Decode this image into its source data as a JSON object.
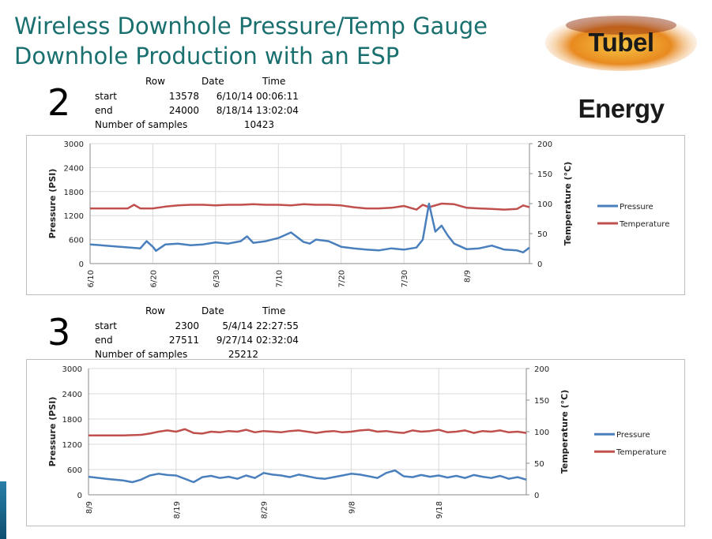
{
  "slide": {
    "title_line1": "Wireless Downhole Pressure/Temp Gauge",
    "title_line2": "Downhole Production with an ESP",
    "logo_text": "Tubel Energy",
    "colors": {
      "title": "#1a6f6f",
      "pressure": "#4a7fbd",
      "temperature": "#c0504d"
    }
  },
  "sections": [
    {
      "numeral": "2",
      "headers": {
        "row": "Row",
        "date": "Date",
        "time": "Time"
      },
      "start": {
        "label": "start",
        "row": "13578",
        "date": "6/10/14",
        "time": "00:06:11"
      },
      "end": {
        "label": "end",
        "row": "24000",
        "date": "8/18/14",
        "time": "13:02:04"
      },
      "samples": {
        "label": "Number of samples",
        "value": "10423"
      }
    },
    {
      "numeral": "3",
      "headers": {
        "row": "Row",
        "date": "Date",
        "time": "Time"
      },
      "start": {
        "label": "start",
        "row": "2300",
        "date": "5/4/14",
        "time": "22:27:55"
      },
      "end": {
        "label": "end",
        "row": "27511",
        "date": "9/27/14",
        "time": "02:32:04"
      },
      "samples": {
        "label": "Number of samples",
        "value": "25212"
      }
    }
  ],
  "chart_data": [
    {
      "type": "line",
      "ylabel": "Pressure (PSI)",
      "y2label": "Temperature (°C)",
      "ylim": [
        0,
        3000
      ],
      "y2lim": [
        0,
        200
      ],
      "yticks": [
        "3000",
        "2400",
        "1800",
        "1200",
        "600",
        "0"
      ],
      "y2ticks": [
        "200",
        "150",
        "100",
        "50",
        "0"
      ],
      "xlim": [
        0,
        70
      ],
      "categories": [
        "6/10",
        "6/20",
        "6/30",
        "7/10",
        "7/20",
        "7/30",
        "8/9"
      ],
      "legend": [
        "Pressure",
        "Temperature"
      ],
      "series": [
        {
          "name": "Pressure",
          "axis": "left",
          "x": [
            0,
            4,
            8,
            9,
            10,
            10.5,
            12,
            14,
            16,
            18,
            20,
            22,
            24,
            25,
            26,
            28,
            30,
            32,
            34,
            35,
            36,
            38,
            40,
            42,
            44,
            46,
            48,
            50,
            52,
            53,
            54,
            55,
            56,
            57,
            58,
            60,
            62,
            64,
            66,
            68,
            69,
            70
          ],
          "y": [
            480,
            430,
            380,
            560,
            420,
            320,
            480,
            500,
            460,
            480,
            530,
            500,
            560,
            680,
            520,
            560,
            640,
            780,
            540,
            500,
            600,
            560,
            420,
            380,
            350,
            330,
            380,
            350,
            400,
            600,
            1500,
            800,
            950,
            700,
            500,
            360,
            380,
            450,
            350,
            330,
            280,
            400
          ]
        },
        {
          "name": "Temperature",
          "axis": "right",
          "x": [
            0,
            4,
            6,
            7,
            8,
            10,
            12,
            14,
            16,
            18,
            20,
            22,
            24,
            26,
            28,
            30,
            32,
            34,
            36,
            38,
            40,
            42,
            44,
            46,
            48,
            50,
            51,
            52,
            53,
            54,
            56,
            58,
            60,
            62,
            64,
            66,
            68,
            69,
            70
          ],
          "y": [
            92,
            92,
            92,
            98,
            92,
            92,
            95,
            97,
            98,
            98,
            97,
            98,
            98,
            99,
            98,
            98,
            97,
            99,
            98,
            98,
            97,
            94,
            92,
            92,
            93,
            96,
            93,
            90,
            98,
            94,
            100,
            99,
            93,
            92,
            91,
            90,
            91,
            97,
            94
          ]
        }
      ]
    },
    {
      "type": "line",
      "ylabel": "Pressure (PSI)",
      "y2label": "Temperature (°C)",
      "ylim": [
        0,
        3000
      ],
      "y2lim": [
        0,
        200
      ],
      "yticks": [
        "3000",
        "2400",
        "1800",
        "1200",
        "600",
        "0"
      ],
      "y2ticks": [
        "200",
        "150",
        "100",
        "50",
        "0"
      ],
      "xlim": [
        0,
        50
      ],
      "categories": [
        "8/9",
        "8/19",
        "8/29",
        "9/8",
        "9/18"
      ],
      "legend": [
        "Pressure",
        "Temperature"
      ],
      "series": [
        {
          "name": "Pressure",
          "axis": "left",
          "x": [
            0,
            2,
            4,
            5,
            6,
            7,
            8,
            9,
            10,
            11,
            12,
            13,
            14,
            15,
            16,
            17,
            18,
            19,
            20,
            21,
            22,
            23,
            24,
            25,
            26,
            27,
            28,
            29,
            30,
            31,
            32,
            33,
            34,
            35,
            36,
            37,
            38,
            39,
            40,
            41,
            42,
            43,
            44,
            45,
            46,
            47,
            48,
            49,
            50
          ],
          "y": [
            430,
            380,
            340,
            300,
            360,
            460,
            500,
            470,
            460,
            380,
            300,
            420,
            450,
            400,
            430,
            380,
            460,
            400,
            520,
            480,
            460,
            420,
            480,
            440,
            400,
            380,
            420,
            460,
            500,
            480,
            440,
            400,
            520,
            580,
            440,
            420,
            470,
            430,
            460,
            410,
            450,
            400,
            470,
            430,
            400,
            450,
            380,
            420,
            360
          ]
        },
        {
          "name": "Temperature",
          "axis": "right",
          "x": [
            0,
            2,
            4,
            6,
            7,
            8,
            9,
            10,
            11,
            12,
            13,
            14,
            15,
            16,
            17,
            18,
            19,
            20,
            21,
            22,
            23,
            24,
            25,
            26,
            27,
            28,
            29,
            30,
            31,
            32,
            33,
            34,
            35,
            36,
            37,
            38,
            39,
            40,
            41,
            42,
            43,
            44,
            45,
            46,
            47,
            48,
            49,
            50
          ],
          "y": [
            94,
            94,
            94,
            95,
            97,
            100,
            102,
            100,
            104,
            98,
            97,
            100,
            99,
            101,
            100,
            103,
            99,
            101,
            100,
            99,
            101,
            102,
            100,
            98,
            100,
            101,
            99,
            100,
            102,
            103,
            100,
            101,
            99,
            98,
            102,
            100,
            101,
            103,
            99,
            100,
            102,
            98,
            101,
            100,
            102,
            99,
            100,
            98
          ]
        }
      ]
    }
  ]
}
